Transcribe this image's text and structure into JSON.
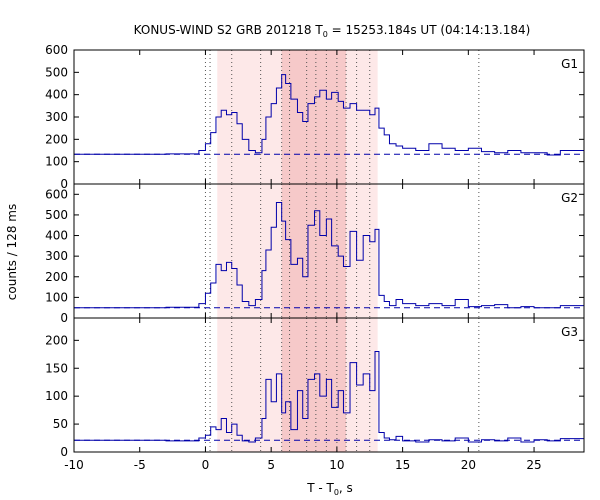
{
  "chart_data": {
    "type": "line",
    "title_main": "KONUS-WIND S2 GRB 201218 T",
    "title_sub": "0",
    "title_rest": " = 15253.184s UT (04:14:13.184)",
    "xlabel_main": "T - T",
    "xlabel_sub": "0",
    "xlabel_rest": ", s",
    "ylabel": "counts / 128 ms",
    "xlim": [
      -10,
      28.8
    ],
    "xticks": [
      -10,
      -5,
      0,
      5,
      10,
      15,
      20,
      25
    ],
    "colors": {
      "data": "#0000aa",
      "background_band": "#fde8e8",
      "inner_band": "#f6c9c9",
      "dotted": "#555555"
    },
    "shaded_intervals": [
      {
        "from": 0.9,
        "to": 13.1,
        "shade": "light"
      },
      {
        "from": 5.8,
        "to": 10.7,
        "shade": "dark"
      }
    ],
    "vertical_markers": [
      0.0,
      0.35,
      2.0,
      4.2,
      5.8,
      6.4,
      7.7,
      8.4,
      9.2,
      10.0,
      10.7,
      11.5,
      12.5,
      20.8
    ],
    "panels": [
      {
        "name": "G1",
        "ylim": [
          0,
          600
        ],
        "yticks": [
          0,
          100,
          200,
          300,
          400,
          500,
          600
        ],
        "background_level": 133,
        "x": [
          -10,
          -3,
          -0.5,
          0,
          0.4,
          0.8,
          1.2,
          1.6,
          2.0,
          2.4,
          2.8,
          3.3,
          3.8,
          4.3,
          4.6,
          5.0,
          5.4,
          5.8,
          6.1,
          6.5,
          7.0,
          7.4,
          7.8,
          8.3,
          8.7,
          9.2,
          9.6,
          10.1,
          10.5,
          11.0,
          11.5,
          12.0,
          12.5,
          12.9,
          13.2,
          13.6,
          14.0,
          14.5,
          15.0,
          16,
          17,
          18,
          19,
          20,
          21,
          22,
          23,
          24,
          25,
          26,
          27,
          28.8
        ],
        "y": [
          133,
          135,
          150,
          180,
          230,
          300,
          330,
          310,
          320,
          270,
          200,
          150,
          140,
          200,
          300,
          360,
          430,
          490,
          450,
          380,
          320,
          280,
          360,
          390,
          420,
          380,
          410,
          370,
          340,
          360,
          330,
          330,
          310,
          340,
          250,
          220,
          180,
          170,
          160,
          150,
          180,
          160,
          150,
          160,
          145,
          140,
          150,
          140,
          140,
          130,
          150,
          140
        ]
      },
      {
        "name": "G2",
        "ylim": [
          0,
          650
        ],
        "yticks": [
          0,
          100,
          200,
          300,
          400,
          500,
          600
        ],
        "background_level": 50,
        "x": [
          -10,
          -3,
          -0.5,
          0,
          0.4,
          0.8,
          1.2,
          1.6,
          2.0,
          2.4,
          2.8,
          3.3,
          3.8,
          4.3,
          4.6,
          5.0,
          5.4,
          5.8,
          6.1,
          6.5,
          7.0,
          7.4,
          7.8,
          8.3,
          8.7,
          9.2,
          9.6,
          10.1,
          10.5,
          11.0,
          11.5,
          12.0,
          12.5,
          12.9,
          13.2,
          13.6,
          14.0,
          14.5,
          15.0,
          16,
          17,
          18,
          19,
          20,
          21,
          22,
          23,
          24,
          25,
          26,
          27,
          28.8
        ],
        "y": [
          50,
          52,
          70,
          120,
          170,
          260,
          230,
          270,
          240,
          160,
          80,
          60,
          90,
          230,
          330,
          440,
          560,
          470,
          380,
          260,
          290,
          200,
          450,
          520,
          400,
          480,
          350,
          300,
          250,
          420,
          280,
          400,
          370,
          430,
          110,
          80,
          60,
          90,
          70,
          60,
          70,
          60,
          90,
          55,
          60,
          65,
          50,
          55,
          50,
          50,
          60,
          55
        ]
      },
      {
        "name": "G3",
        "ylim": [
          0,
          240
        ],
        "yticks": [
          0,
          50,
          100,
          150,
          200
        ],
        "background_level": 21,
        "x": [
          -10,
          -3,
          -0.5,
          0,
          0.4,
          0.8,
          1.2,
          1.6,
          2.0,
          2.4,
          2.8,
          3.3,
          3.8,
          4.3,
          4.6,
          5.0,
          5.4,
          5.8,
          6.1,
          6.5,
          7.0,
          7.4,
          7.8,
          8.3,
          8.7,
          9.2,
          9.6,
          10.1,
          10.5,
          11.0,
          11.5,
          12.0,
          12.5,
          12.9,
          13.2,
          13.6,
          14.0,
          14.5,
          15.0,
          16,
          17,
          18,
          19,
          20,
          21,
          22,
          23,
          24,
          25,
          26,
          27,
          28.8
        ],
        "y": [
          21,
          20,
          25,
          30,
          45,
          40,
          60,
          35,
          50,
          30,
          20,
          18,
          25,
          60,
          130,
          90,
          140,
          70,
          90,
          40,
          110,
          60,
          130,
          140,
          100,
          130,
          80,
          110,
          70,
          160,
          120,
          140,
          110,
          180,
          35,
          25,
          22,
          28,
          20,
          18,
          22,
          20,
          25,
          18,
          22,
          20,
          25,
          18,
          22,
          20,
          24,
          20
        ]
      }
    ]
  }
}
